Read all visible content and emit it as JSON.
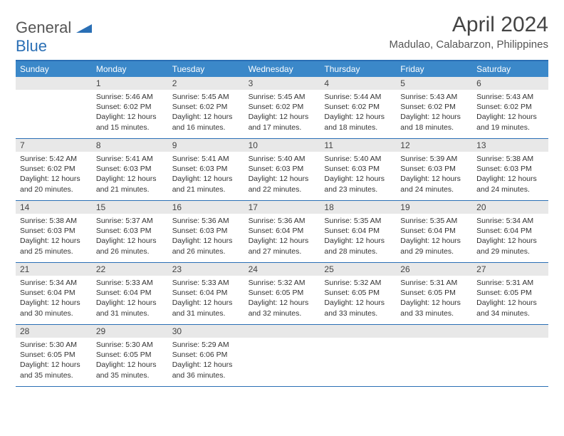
{
  "logo": {
    "part1": "General",
    "part2": "Blue"
  },
  "title": "April 2024",
  "location": "Madulao, Calabarzon, Philippines",
  "colors": {
    "header_bg": "#3b88c9",
    "border": "#2a6fb5",
    "daynum_bg": "#e8e8e8",
    "text": "#333333",
    "logo_gray": "#555555",
    "logo_blue": "#2a6fb5"
  },
  "dayNames": [
    "Sunday",
    "Monday",
    "Tuesday",
    "Wednesday",
    "Thursday",
    "Friday",
    "Saturday"
  ],
  "weeks": [
    [
      {
        "num": "",
        "sunrise": "",
        "sunset": "",
        "daylight": ""
      },
      {
        "num": "1",
        "sunrise": "Sunrise: 5:46 AM",
        "sunset": "Sunset: 6:02 PM",
        "daylight": "Daylight: 12 hours and 15 minutes."
      },
      {
        "num": "2",
        "sunrise": "Sunrise: 5:45 AM",
        "sunset": "Sunset: 6:02 PM",
        "daylight": "Daylight: 12 hours and 16 minutes."
      },
      {
        "num": "3",
        "sunrise": "Sunrise: 5:45 AM",
        "sunset": "Sunset: 6:02 PM",
        "daylight": "Daylight: 12 hours and 17 minutes."
      },
      {
        "num": "4",
        "sunrise": "Sunrise: 5:44 AM",
        "sunset": "Sunset: 6:02 PM",
        "daylight": "Daylight: 12 hours and 18 minutes."
      },
      {
        "num": "5",
        "sunrise": "Sunrise: 5:43 AM",
        "sunset": "Sunset: 6:02 PM",
        "daylight": "Daylight: 12 hours and 18 minutes."
      },
      {
        "num": "6",
        "sunrise": "Sunrise: 5:43 AM",
        "sunset": "Sunset: 6:02 PM",
        "daylight": "Daylight: 12 hours and 19 minutes."
      }
    ],
    [
      {
        "num": "7",
        "sunrise": "Sunrise: 5:42 AM",
        "sunset": "Sunset: 6:02 PM",
        "daylight": "Daylight: 12 hours and 20 minutes."
      },
      {
        "num": "8",
        "sunrise": "Sunrise: 5:41 AM",
        "sunset": "Sunset: 6:03 PM",
        "daylight": "Daylight: 12 hours and 21 minutes."
      },
      {
        "num": "9",
        "sunrise": "Sunrise: 5:41 AM",
        "sunset": "Sunset: 6:03 PM",
        "daylight": "Daylight: 12 hours and 21 minutes."
      },
      {
        "num": "10",
        "sunrise": "Sunrise: 5:40 AM",
        "sunset": "Sunset: 6:03 PM",
        "daylight": "Daylight: 12 hours and 22 minutes."
      },
      {
        "num": "11",
        "sunrise": "Sunrise: 5:40 AM",
        "sunset": "Sunset: 6:03 PM",
        "daylight": "Daylight: 12 hours and 23 minutes."
      },
      {
        "num": "12",
        "sunrise": "Sunrise: 5:39 AM",
        "sunset": "Sunset: 6:03 PM",
        "daylight": "Daylight: 12 hours and 24 minutes."
      },
      {
        "num": "13",
        "sunrise": "Sunrise: 5:38 AM",
        "sunset": "Sunset: 6:03 PM",
        "daylight": "Daylight: 12 hours and 24 minutes."
      }
    ],
    [
      {
        "num": "14",
        "sunrise": "Sunrise: 5:38 AM",
        "sunset": "Sunset: 6:03 PM",
        "daylight": "Daylight: 12 hours and 25 minutes."
      },
      {
        "num": "15",
        "sunrise": "Sunrise: 5:37 AM",
        "sunset": "Sunset: 6:03 PM",
        "daylight": "Daylight: 12 hours and 26 minutes."
      },
      {
        "num": "16",
        "sunrise": "Sunrise: 5:36 AM",
        "sunset": "Sunset: 6:03 PM",
        "daylight": "Daylight: 12 hours and 26 minutes."
      },
      {
        "num": "17",
        "sunrise": "Sunrise: 5:36 AM",
        "sunset": "Sunset: 6:04 PM",
        "daylight": "Daylight: 12 hours and 27 minutes."
      },
      {
        "num": "18",
        "sunrise": "Sunrise: 5:35 AM",
        "sunset": "Sunset: 6:04 PM",
        "daylight": "Daylight: 12 hours and 28 minutes."
      },
      {
        "num": "19",
        "sunrise": "Sunrise: 5:35 AM",
        "sunset": "Sunset: 6:04 PM",
        "daylight": "Daylight: 12 hours and 29 minutes."
      },
      {
        "num": "20",
        "sunrise": "Sunrise: 5:34 AM",
        "sunset": "Sunset: 6:04 PM",
        "daylight": "Daylight: 12 hours and 29 minutes."
      }
    ],
    [
      {
        "num": "21",
        "sunrise": "Sunrise: 5:34 AM",
        "sunset": "Sunset: 6:04 PM",
        "daylight": "Daylight: 12 hours and 30 minutes."
      },
      {
        "num": "22",
        "sunrise": "Sunrise: 5:33 AM",
        "sunset": "Sunset: 6:04 PM",
        "daylight": "Daylight: 12 hours and 31 minutes."
      },
      {
        "num": "23",
        "sunrise": "Sunrise: 5:33 AM",
        "sunset": "Sunset: 6:04 PM",
        "daylight": "Daylight: 12 hours and 31 minutes."
      },
      {
        "num": "24",
        "sunrise": "Sunrise: 5:32 AM",
        "sunset": "Sunset: 6:05 PM",
        "daylight": "Daylight: 12 hours and 32 minutes."
      },
      {
        "num": "25",
        "sunrise": "Sunrise: 5:32 AM",
        "sunset": "Sunset: 6:05 PM",
        "daylight": "Daylight: 12 hours and 33 minutes."
      },
      {
        "num": "26",
        "sunrise": "Sunrise: 5:31 AM",
        "sunset": "Sunset: 6:05 PM",
        "daylight": "Daylight: 12 hours and 33 minutes."
      },
      {
        "num": "27",
        "sunrise": "Sunrise: 5:31 AM",
        "sunset": "Sunset: 6:05 PM",
        "daylight": "Daylight: 12 hours and 34 minutes."
      }
    ],
    [
      {
        "num": "28",
        "sunrise": "Sunrise: 5:30 AM",
        "sunset": "Sunset: 6:05 PM",
        "daylight": "Daylight: 12 hours and 35 minutes."
      },
      {
        "num": "29",
        "sunrise": "Sunrise: 5:30 AM",
        "sunset": "Sunset: 6:05 PM",
        "daylight": "Daylight: 12 hours and 35 minutes."
      },
      {
        "num": "30",
        "sunrise": "Sunrise: 5:29 AM",
        "sunset": "Sunset: 6:06 PM",
        "daylight": "Daylight: 12 hours and 36 minutes."
      },
      {
        "num": "",
        "sunrise": "",
        "sunset": "",
        "daylight": ""
      },
      {
        "num": "",
        "sunrise": "",
        "sunset": "",
        "daylight": ""
      },
      {
        "num": "",
        "sunrise": "",
        "sunset": "",
        "daylight": ""
      },
      {
        "num": "",
        "sunrise": "",
        "sunset": "",
        "daylight": ""
      }
    ]
  ]
}
